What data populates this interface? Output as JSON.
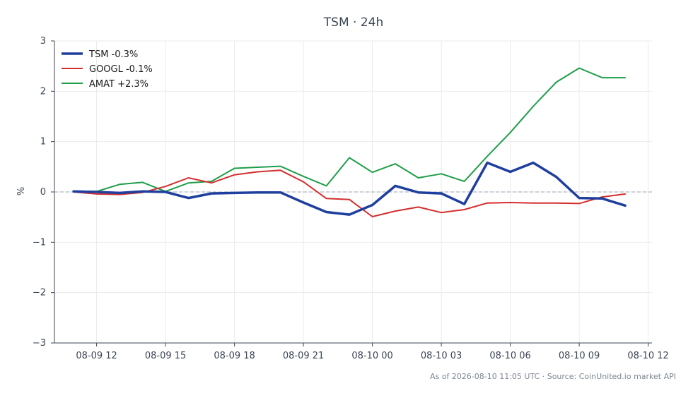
{
  "chart_data": {
    "type": "line",
    "title": "TSM · 24h",
    "ylabel": "%",
    "xlabel": "",
    "ylim": [
      -3,
      3
    ],
    "xlim": [
      "08-09 10:10",
      "08-10 12:10"
    ],
    "x_ticks": [
      "08-09 12",
      "08-09 15",
      "08-09 18",
      "08-09 21",
      "08-10 00",
      "08-10 03",
      "08-10 06",
      "08-10 09",
      "08-10 12"
    ],
    "y_ticks": [
      "3",
      "2",
      "1",
      "0",
      "−1",
      "−2",
      "−3"
    ],
    "x": [
      "08-09 11:00",
      "08-09 12:00",
      "08-09 13:00",
      "08-09 14:00",
      "08-09 15:00",
      "08-09 16:00",
      "08-09 17:00",
      "08-09 18:00",
      "08-09 19:00",
      "08-09 20:00",
      "08-09 21:00",
      "08-09 22:00",
      "08-09 23:00",
      "08-10 00:00",
      "08-10 01:00",
      "08-10 02:00",
      "08-10 03:00",
      "08-10 04:00",
      "08-10 05:00",
      "08-10 06:00",
      "08-10 07:00",
      "08-10 08:00",
      "08-10 09:00",
      "08-10 10:00",
      "08-10 11:00"
    ],
    "series": [
      {
        "name": "TSM -0.3%",
        "color": "#1f3f9e",
        "values": [
          0.01,
          0.0,
          -0.02,
          0.01,
          0.0,
          -0.12,
          -0.03,
          -0.02,
          -0.01,
          -0.01,
          -0.21,
          -0.4,
          -0.45,
          -0.26,
          0.12,
          -0.01,
          -0.03,
          -0.24,
          0.58,
          0.4,
          0.58,
          0.3,
          -0.12,
          -0.13,
          -0.27
        ]
      },
      {
        "name": "GOOGL -0.1%",
        "color": "#d32f2f",
        "values": [
          0.0,
          -0.04,
          -0.05,
          -0.01,
          0.11,
          0.28,
          0.18,
          0.34,
          0.4,
          0.43,
          0.2,
          -0.13,
          -0.15,
          -0.49,
          -0.38,
          -0.3,
          -0.41,
          -0.35,
          -0.22,
          -0.21,
          -0.22,
          -0.22,
          -0.23,
          -0.1,
          -0.04
        ]
      },
      {
        "name": "AMAT +2.3%",
        "color": "#1f9e4a",
        "values": [
          0.02,
          0.01,
          0.15,
          0.19,
          0.01,
          0.18,
          0.21,
          0.47,
          0.49,
          0.51,
          0.31,
          0.12,
          0.68,
          0.39,
          0.56,
          0.28,
          0.36,
          0.21,
          0.71,
          1.18,
          1.7,
          2.18,
          2.46,
          2.27,
          2.27
        ]
      }
    ],
    "reference_line": 0,
    "grid": true,
    "legend_position": "top-left"
  },
  "footer": "As of 2026-08-10 11:05 UTC · Source: CoinUnited.io market API"
}
